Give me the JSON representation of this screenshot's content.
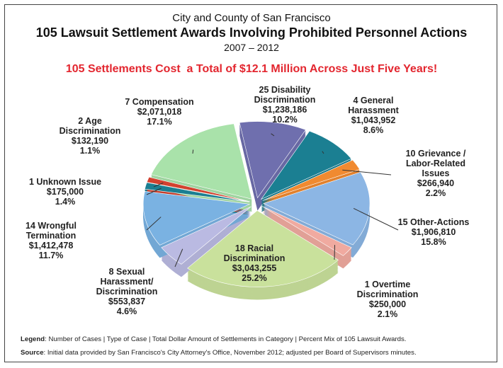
{
  "chart_data": {
    "type": "pie",
    "title": "City and County of San Francisco",
    "subtitle": "105 Lawsuit Settlement Awards Involving Prohibited Personnel Actions",
    "period": "2007 – 2012",
    "headline": "105 Settlements Cost  a Total of $12.1 Million Across Just Five Years!",
    "categories": [
      "25 Disability\nDiscrimination",
      "4 General\nHarassment",
      "10 Grievance /\nLabor-Related\nIssues",
      "15 Other-Actions",
      "1 Overtime\nDiscrimination",
      "18 Racial\nDiscrimination",
      "8 Sexual\nHarassment/\nDiscrimination",
      "14 Wrongful\nTermination",
      "1 Unknown Issue",
      "2 Age\nDiscrimination",
      "7 Compensation"
    ],
    "amounts": [
      "$1,238,186",
      "$1,043,952",
      "$266,940",
      "$1,906,810",
      "$250,000",
      "$3,043,255",
      "$553,837",
      "$1,412,478",
      "$175,000",
      "$132,190",
      "$2,071,018"
    ],
    "values": [
      10.2,
      8.6,
      2.2,
      15.8,
      2.1,
      25.2,
      4.6,
      11.7,
      1.4,
      1.1,
      17.1
    ],
    "value_labels": [
      "10.2%",
      "8.6%",
      "2.2%",
      "15.8%",
      "2.1%",
      "25.2%",
      "4.6%",
      "11.7%",
      "1.4%",
      "1.1%",
      "17.1%"
    ],
    "colors": [
      "#6f6fae",
      "#1b7f92",
      "#f08a30",
      "#8cb6e4",
      "#f0aaa0",
      "#c9e19c",
      "#babae2",
      "#7ab2e2",
      "#1b7f92",
      "#d2412f",
      "#a9e2aa"
    ],
    "legend": {
      "label": "Legend",
      "text": ": Number of Cases | Type of Case | Total Dollar Amount of Settlements in Category | Percent Mix of 105 Lawsuit Awards."
    },
    "source": {
      "label": "Source",
      "text": ":  Initial data provided by San Francisco's City Attorney's Office, November 2012; adjusted per Board of Supervisors minutes."
    }
  }
}
